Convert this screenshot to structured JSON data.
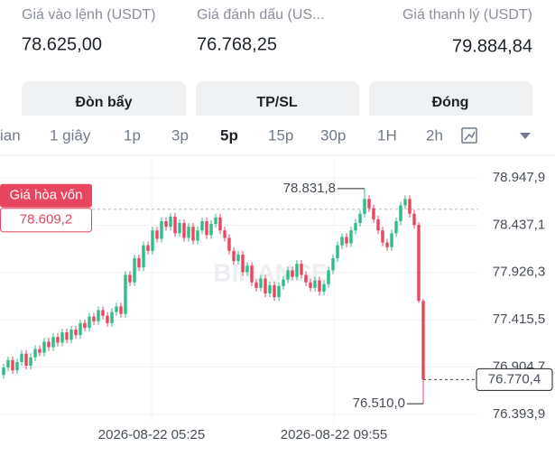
{
  "header": {
    "fields": [
      {
        "label": "Giá vào lệnh (USDT)",
        "value": "78.625,00"
      },
      {
        "label": "Giá đánh dấu (US...",
        "value": "76.768,25"
      },
      {
        "label": "Giá thanh lý (USDT)",
        "value": "79.884,84"
      }
    ],
    "buttons": [
      "Đòn bẩy",
      "TP/SL",
      "Đóng"
    ]
  },
  "tabs": [
    "ian",
    "1 giây",
    "1p",
    "3p",
    "5p",
    "15p",
    "30p",
    "1H",
    "2h"
  ],
  "chart_data": {
    "type": "candlestick",
    "watermark": "BINANCE",
    "up_color": "#2ebd85",
    "down_color": "#e8455f",
    "ylim": [
      76306,
      79162
    ],
    "yticks": [
      {
        "value": 78947.9,
        "label": "78.947,9"
      },
      {
        "value": 78437.1,
        "label": "78.437,1"
      },
      {
        "value": 77926.3,
        "label": "77.926,3"
      },
      {
        "value": 77415.5,
        "label": "77.415,5"
      },
      {
        "value": 76904.7,
        "label": "76.904,7"
      },
      {
        "value": 76393.9,
        "label": "76.393,9"
      }
    ],
    "xlabels": [
      "2026-08-22 05:25",
      "2026-08-22 09:55"
    ],
    "break_even": {
      "name": "Giá hòa vốn",
      "value": 78609.2,
      "label": "78.609,2"
    },
    "last_price": {
      "value": 76770.4,
      "label": "76.770,4"
    },
    "max_label": "78.831,8",
    "min_label": "76.510,0",
    "open": [
      76820,
      76900,
      76980,
      76870,
      76960,
      77050,
      76920,
      77010,
      77100,
      77060,
      77180,
      77120,
      77230,
      77170,
      77280,
      77200,
      77310,
      77250,
      77380,
      77330,
      77450,
      77400,
      77520,
      77460,
      77380,
      77500,
      77560,
      77480,
      77900,
      77820,
      78080,
      77980,
      78220,
      78160,
      78380,
      78290,
      78480,
      78420,
      78530,
      78350,
      78460,
      78300,
      78420,
      78270,
      78380,
      78480,
      78330,
      78450,
      78520,
      78380,
      78300,
      78160,
      78050,
      78120,
      77930,
      78000,
      77820,
      77760,
      77860,
      77700,
      77790,
      77660,
      77780,
      77850,
      77950,
      77880,
      78020,
      77900,
      77820,
      77760,
      77840,
      77720,
      77800,
      77950,
      78080,
      78220,
      78310,
      78240,
      78380,
      78460,
      78560,
      78720,
      78620,
      78500,
      78380,
      78250,
      78200,
      78350,
      78480,
      78650,
      78720,
      78560,
      78440,
      77620
    ],
    "high": [
      76940,
      77020,
      77020,
      77000,
      77090,
      77090,
      77050,
      77140,
      77140,
      77220,
      77220,
      77270,
      77270,
      77320,
      77320,
      77350,
      77350,
      77420,
      77420,
      77490,
      77490,
      77560,
      77560,
      77500,
      77540,
      77600,
      77600,
      77940,
      77940,
      78120,
      78120,
      78260,
      78260,
      78420,
      78420,
      78520,
      78520,
      78570,
      78570,
      78500,
      78500,
      78460,
      78460,
      78420,
      78520,
      78520,
      78490,
      78560,
      78560,
      78420,
      78340,
      78200,
      78160,
      78160,
      78040,
      78040,
      77860,
      77900,
      77900,
      77830,
      77830,
      77820,
      77890,
      77990,
      77990,
      78060,
      78060,
      77940,
      77860,
      77880,
      77880,
      77840,
      77990,
      78120,
      78260,
      78350,
      78350,
      78420,
      78500,
      78600,
      78831.8,
      78760,
      78660,
      78540,
      78420,
      78290,
      78390,
      78520,
      78690,
      78760,
      78760,
      78600,
      78470,
      77640
    ],
    "low": [
      76780,
      76860,
      76830,
      76830,
      76920,
      76880,
      76880,
      76970,
      77020,
      77020,
      77080,
      77080,
      77130,
      77130,
      77160,
      77160,
      77210,
      77210,
      77290,
      77290,
      77360,
      77360,
      77420,
      77340,
      77340,
      77460,
      77440,
      77440,
      77780,
      77780,
      77940,
      77940,
      78120,
      78120,
      78250,
      78250,
      78380,
      78380,
      78310,
      78310,
      78260,
      78260,
      78230,
      78230,
      78340,
      78290,
      78290,
      78410,
      78340,
      78260,
      78120,
      78010,
      78010,
      77890,
      77890,
      77780,
      77720,
      77720,
      77660,
      77660,
      77620,
      77620,
      77740,
      77810,
      77840,
      77840,
      77860,
      77780,
      77720,
      77720,
      77680,
      77680,
      77760,
      77910,
      78040,
      78180,
      78200,
      78200,
      78340,
      78420,
      78520,
      78580,
      78460,
      78340,
      78210,
      78160,
      78160,
      78310,
      78440,
      78610,
      78520,
      78400,
      77600,
      76510
    ],
    "close": [
      76900,
      76980,
      76870,
      76960,
      77050,
      76920,
      77010,
      77100,
      77060,
      77180,
      77120,
      77230,
      77170,
      77280,
      77200,
      77310,
      77250,
      77380,
      77330,
      77450,
      77400,
      77520,
      77460,
      77380,
      77500,
      77560,
      77480,
      77900,
      77820,
      78080,
      77980,
      78220,
      78160,
      78380,
      78290,
      78480,
      78420,
      78530,
      78350,
      78460,
      78300,
      78420,
      78270,
      78380,
      78480,
      78330,
      78450,
      78520,
      78380,
      78300,
      78160,
      78050,
      78120,
      77930,
      78000,
      77820,
      77760,
      77860,
      77700,
      77790,
      77660,
      77780,
      77850,
      77950,
      77880,
      78020,
      77900,
      77820,
      77760,
      77840,
      77720,
      77800,
      77950,
      78080,
      78220,
      78310,
      78240,
      78380,
      78460,
      78560,
      78720,
      78620,
      78500,
      78380,
      78250,
      78200,
      78350,
      78480,
      78650,
      78720,
      78560,
      78440,
      77620,
      76770.4
    ]
  }
}
